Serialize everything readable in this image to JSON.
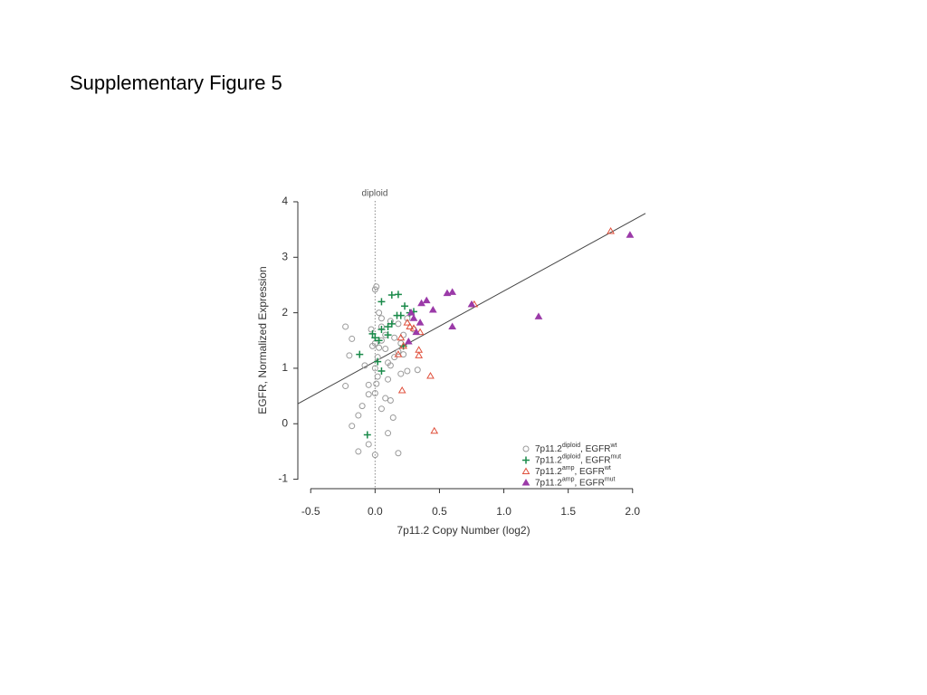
{
  "page_title": "Supplementary Figure 5",
  "chart_data": {
    "type": "scatter",
    "xlabel": "7p11.2 Copy Number (log2)",
    "ylabel": "EGFR, Normalized Expression",
    "annotation": {
      "text": "diploid",
      "x": 0
    },
    "xlim": [
      -0.6,
      2.1
    ],
    "ylim": [
      -1.17,
      4.13
    ],
    "xticks": [
      -0.5,
      {
        "value": 0,
        "label": "0.0"
      },
      0.5,
      {
        "value": 1,
        "label": "1.0"
      },
      1.5,
      {
        "value": 2,
        "label": "2.0"
      }
    ],
    "yticks": [
      -1,
      0,
      1,
      2,
      3,
      4
    ],
    "fit": {
      "x": [
        -0.6,
        2.1
      ],
      "y": [
        0.36,
        3.79
      ]
    },
    "series": [
      {
        "name": [
          "7p11.2",
          "diploid",
          ", EGFR",
          "wt"
        ],
        "color": "#9a9a9a",
        "marker": "circle",
        "x": [
          -0.23,
          -0.2,
          -0.18,
          -0.23,
          -0.1,
          -0.13,
          -0.18,
          -0.13,
          -0.05,
          0,
          0.1,
          0.18,
          0.14,
          0.05,
          0.08,
          0.12,
          -0.05,
          0,
          -0.05,
          0.01,
          0.02,
          0,
          0.02,
          0.03,
          0,
          0.05,
          0.08,
          0.1,
          0.12,
          0.15,
          0.18,
          0.2,
          0.22,
          0.18,
          0.12,
          0.05,
          0.03,
          0,
          0.01,
          0.2,
          0.25,
          0.33,
          -0.03,
          -0.02,
          0.08,
          0.15,
          0.05,
          0.25,
          -0.08,
          0.1,
          0.3,
          0.22
        ],
        "y": [
          1.75,
          1.23,
          1.53,
          0.68,
          0.32,
          0.15,
          -0.04,
          -0.5,
          -0.37,
          -0.56,
          -0.17,
          -0.53,
          0.11,
          0.27,
          0.46,
          0.42,
          0.53,
          0.55,
          0.7,
          0.72,
          0.85,
          1.0,
          1.2,
          1.37,
          1.45,
          1.5,
          1.35,
          1.1,
          1.05,
          1.2,
          1.3,
          1.45,
          1.6,
          1.8,
          1.85,
          1.9,
          2.0,
          2.42,
          2.47,
          0.9,
          0.95,
          0.97,
          1.7,
          1.4,
          1.6,
          1.55,
          1.75,
          1.9,
          1.05,
          0.8,
          1.7,
          1.25
        ]
      },
      {
        "name": [
          "7p11.2",
          "diploid",
          ", EGFR",
          "mut"
        ],
        "color": "#1a8a4a",
        "marker": "plus",
        "x": [
          -0.12,
          -0.06,
          0.05,
          0.02,
          0,
          0.05,
          0.1,
          0.13,
          0.05,
          0.13,
          0.18,
          0.23,
          0.17,
          0.2,
          0.3,
          0.1,
          0.22,
          -0.02,
          0.03,
          0.27
        ],
        "y": [
          1.25,
          -0.2,
          0.95,
          1.12,
          1.55,
          1.7,
          1.75,
          1.8,
          2.2,
          2.32,
          2.33,
          2.12,
          1.95,
          1.95,
          2.02,
          1.6,
          1.4,
          1.62,
          1.5,
          2.0
        ]
      },
      {
        "name": [
          "7p11.2",
          "amp",
          ",   EGFR",
          "wt"
        ],
        "color": "#e0503c",
        "marker": "triangle-open",
        "x": [
          1.83,
          0.77,
          0.25,
          0.3,
          0.35,
          0.2,
          0.18,
          0.22,
          0.34,
          0.34,
          0.43,
          0.21,
          0.46,
          0.27
        ],
        "y": [
          3.47,
          2.15,
          1.82,
          1.72,
          1.65,
          1.55,
          1.25,
          1.4,
          1.33,
          1.23,
          0.86,
          0.6,
          -0.13,
          1.75
        ]
      },
      {
        "name": [
          "7p11.2",
          "amp",
          ",   EGFR",
          "mut"
        ],
        "color": "#9b3aa8",
        "marker": "triangle",
        "x": [
          1.98,
          1.27,
          0.75,
          0.6,
          0.56,
          0.45,
          0.4,
          0.36,
          0.35,
          0.32,
          0.3,
          0.6,
          0.26,
          0.28
        ],
        "y": [
          3.4,
          1.93,
          2.15,
          2.37,
          2.35,
          2.05,
          2.22,
          2.17,
          1.82,
          1.65,
          1.9,
          1.75,
          1.48,
          2.0
        ]
      }
    ]
  }
}
